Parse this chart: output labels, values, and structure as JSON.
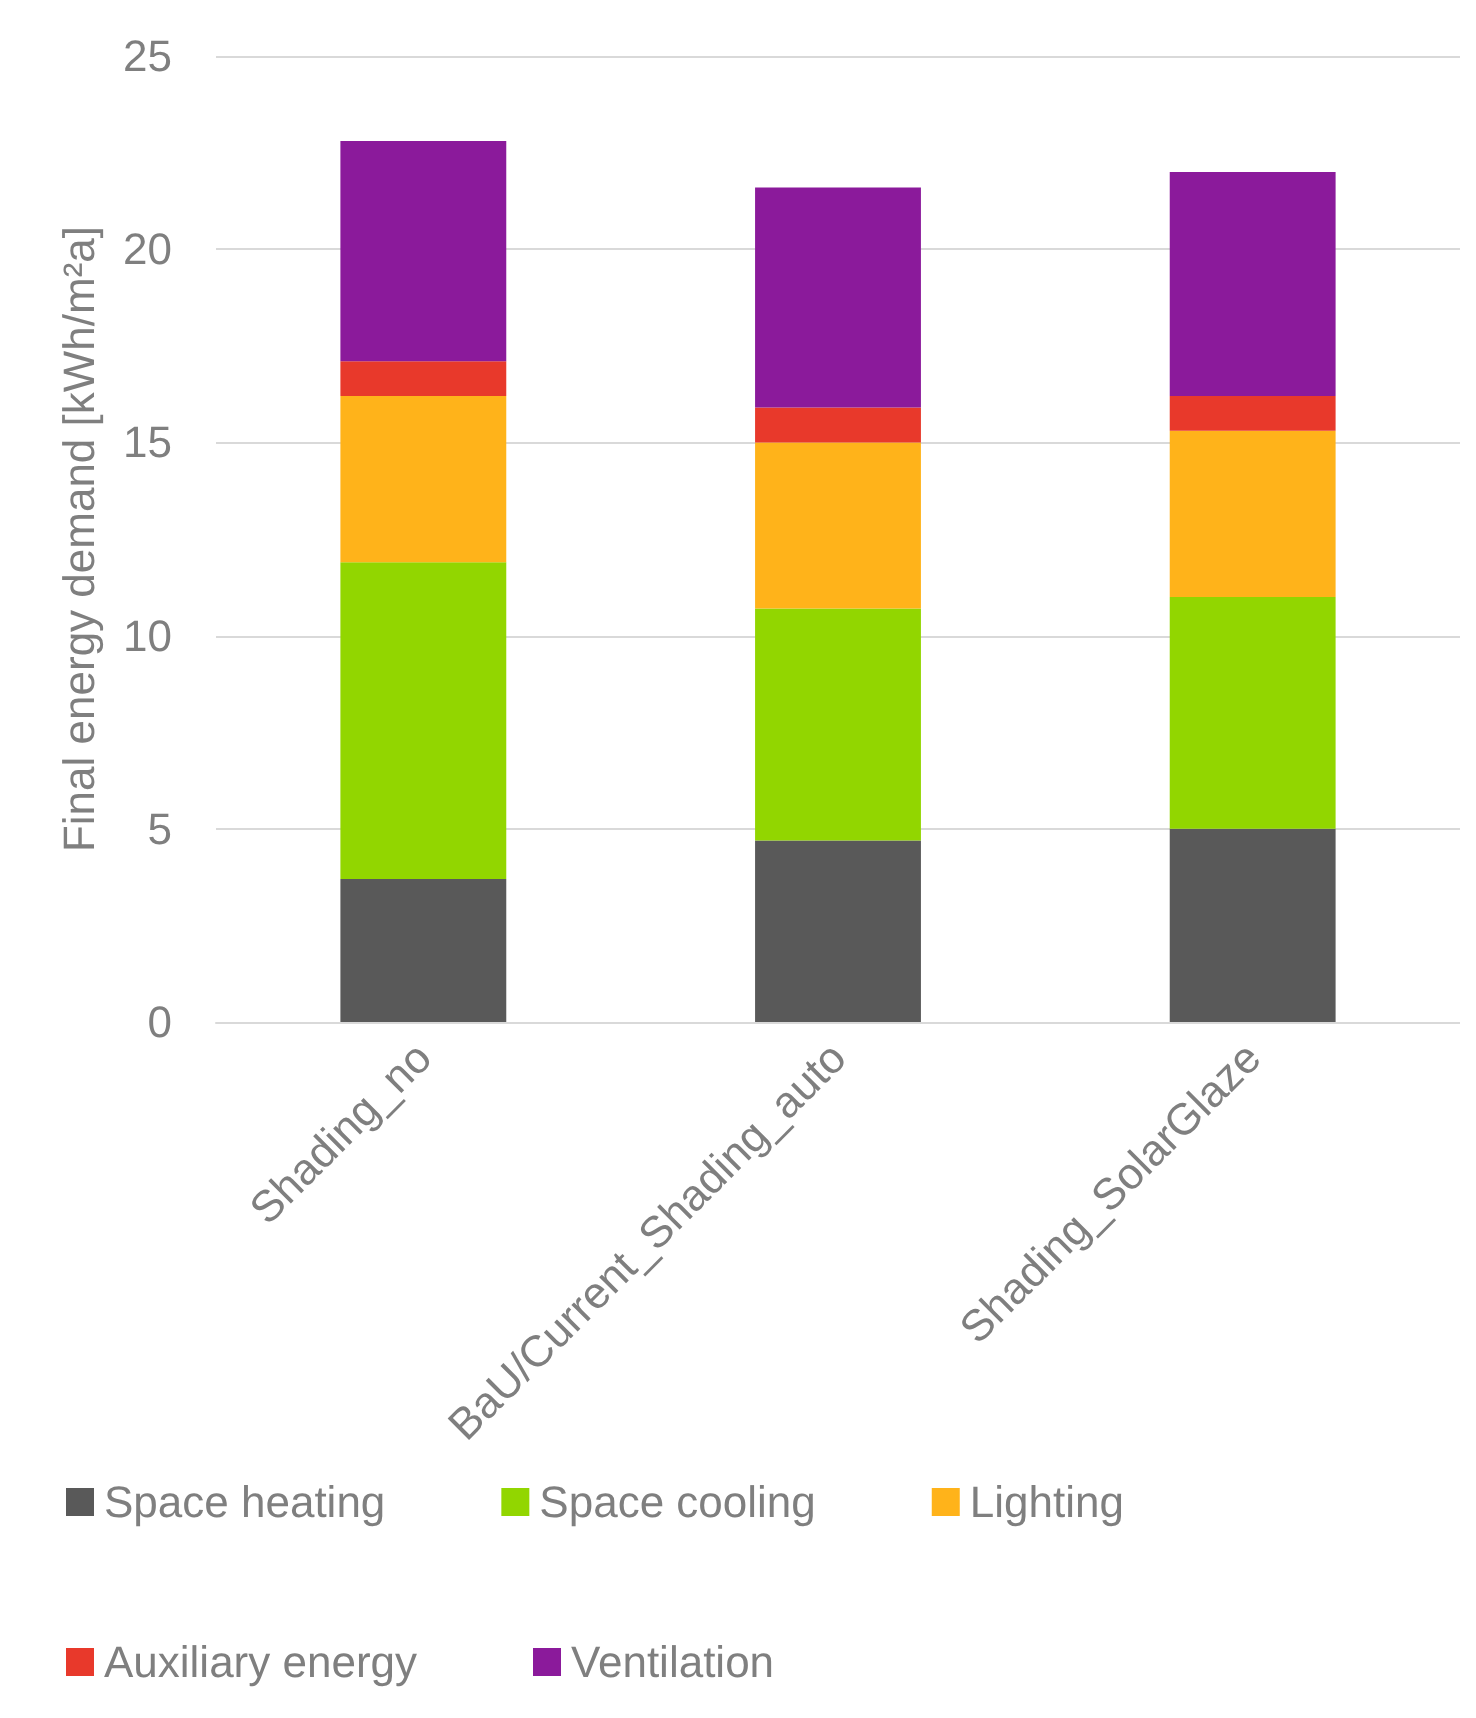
{
  "chart_data": {
    "type": "bar",
    "stacked": true,
    "ylabel": "Final energy demand [kWh/m²a]",
    "categories": [
      "Shading_no",
      "BaU/Current_Shading_auto",
      "Shading_SolarGlaze"
    ],
    "series": [
      {
        "name": "Space heating",
        "color": "#595959",
        "values": [
          3.7,
          4.7,
          5.0
        ]
      },
      {
        "name": "Space cooling",
        "color": "#92d600",
        "values": [
          8.2,
          6.0,
          6.0
        ]
      },
      {
        "name": "Lighting",
        "color": "#ffb31a",
        "values": [
          4.3,
          4.3,
          4.3
        ]
      },
      {
        "name": "Auxiliary energy",
        "color": "#e8392b",
        "values": [
          0.9,
          0.9,
          0.9
        ]
      },
      {
        "name": "Ventilation",
        "color": "#8b1a9b",
        "values": [
          5.7,
          5.7,
          5.8
        ]
      }
    ],
    "ylim": [
      0,
      25
    ],
    "yticks": [
      0,
      5,
      10,
      15,
      20,
      25
    ],
    "grid": "y",
    "legend": "bottom"
  }
}
